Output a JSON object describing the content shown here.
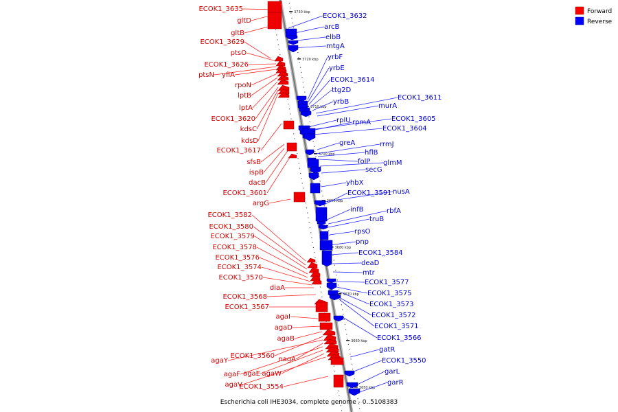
{
  "caption": "Escherichia coli IHE3034, complete genome - 0..5108383",
  "legend": {
    "forward": {
      "label": "Forward",
      "color": "#ff0000"
    },
    "reverse": {
      "label": "Reverse",
      "color": "#0000ff"
    }
  },
  "kbp_marks": [
    "3730 kbp",
    "3720 kbp",
    "3710 kbp",
    "3700 kbp",
    "3690 kbp",
    "3680 kbp",
    "3670 kbp",
    "3660 kbp",
    "3650 kbp"
  ],
  "forward_genes": [
    "ECOK1_3635",
    "gltD",
    "gltB",
    "ECOK1_3629",
    "ptsO",
    "ECOK1_3626",
    "ptsN",
    "yfiA",
    "rpoN",
    "lptB",
    "lptA",
    "ECOK1_3620",
    "kdsC",
    "kdsD",
    "ECOK1_3617",
    "sfsB",
    "ispB",
    "dacB",
    "ECOK1_3601",
    "argG",
    "ECOK1_3582",
    "ECOK1_3580",
    "ECOK1_3579",
    "ECOK1_3578",
    "ECOK1_3576",
    "ECOK1_3574",
    "ECOK1_3570",
    "diaA",
    "ECOK1_3568",
    "ECOK1_3567",
    "agaI",
    "agaD",
    "agaB",
    "ECOK1_3560",
    "agaY",
    "nagA",
    "agaF",
    "agaE",
    "agaW",
    "agaV",
    "ECOK1_3554"
  ],
  "reverse_genes": [
    "ECOK1_3632",
    "arcB",
    "elbB",
    "mtgA",
    "yrbF",
    "yrbE",
    "ECOK1_3614",
    "ttg2D",
    "yrbB",
    "ECOK1_3611",
    "murA",
    "rplU",
    "rpmA",
    "ECOK1_3605",
    "ECOK1_3604",
    "greA",
    "rrmJ",
    "hflB",
    "folP",
    "glmM",
    "secG",
    "yhbX",
    "nusA",
    "ECOK1_3591",
    "infB",
    "rbfA",
    "truB",
    "rpsO",
    "pnp",
    "ECOK1_3584",
    "deaD",
    "mtr",
    "ECOK1_3577",
    "ECOK1_3575",
    "ECOK1_3573",
    "ECOK1_3572",
    "ECOK1_3571",
    "ECOK1_3566",
    "gatR",
    "ECOK1_3550",
    "garL",
    "garR"
  ]
}
